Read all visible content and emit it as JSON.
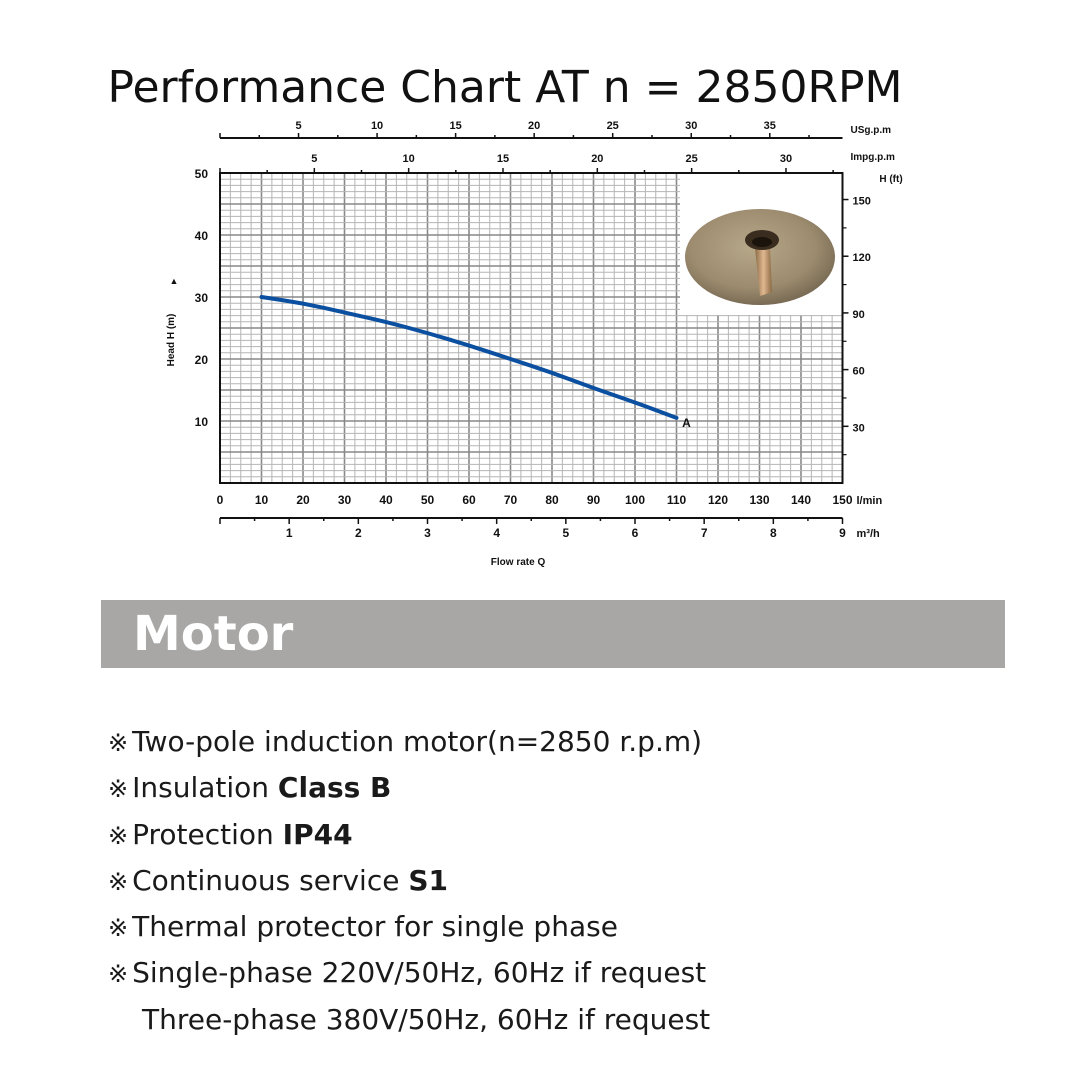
{
  "title": "Performance Chart AT n = 2850RPM",
  "chart_data": {
    "type": "line",
    "title": "Performance Chart AT n = 2850RPM",
    "xlabel": "Flow rate Q",
    "ylabel": "Head H (m)",
    "y2label": "H (ft)",
    "x_unit": "l/min",
    "x2_unit": "m³/h",
    "top_axis_1_unit": "USg.p.m",
    "top_axis_2_unit": "Impg.p.m",
    "xlim": [
      0,
      150
    ],
    "ylim": [
      0,
      50
    ],
    "grid": true,
    "x_ticks": [
      0,
      10,
      20,
      30,
      40,
      50,
      60,
      70,
      80,
      90,
      100,
      110,
      120,
      130,
      140,
      150
    ],
    "y_ticks": [
      10,
      20,
      30,
      40,
      50
    ],
    "y2_ticks": [
      30,
      60,
      90,
      120,
      150
    ],
    "m3h_ticks": [
      1,
      2,
      3,
      4,
      5,
      6,
      7,
      8,
      9
    ],
    "usgpm_ticks": [
      5,
      10,
      15,
      20,
      25,
      30,
      35
    ],
    "impgpm_ticks": [
      5,
      10,
      15,
      20,
      25,
      30
    ],
    "series": [
      {
        "name": "A",
        "color": "#0b4fa0",
        "x": [
          10,
          20,
          30,
          40,
          50,
          60,
          70,
          80,
          90,
          100,
          110
        ],
        "y": [
          30,
          29,
          27.5,
          26,
          24.2,
          22.2,
          20,
          17.8,
          15.3,
          13,
          10.5
        ]
      }
    ]
  },
  "section": {
    "title": "Motor"
  },
  "specs": {
    "bullet": "※",
    "l1": "Two-pole induction motor(n=2850 r.p.m)",
    "l2_a": "Insulation ",
    "l2_b": "Class B",
    "l3_a": "Protection ",
    "l3_b": "IP44",
    "l4_a": "Continuous service ",
    "l4_b": "S1",
    "l5": "Thermal protector for single phase",
    "l6": "Single-phase 220V/50Hz, 60Hz if request",
    "l7": "Three-phase  380V/50Hz, 60Hz if request"
  }
}
